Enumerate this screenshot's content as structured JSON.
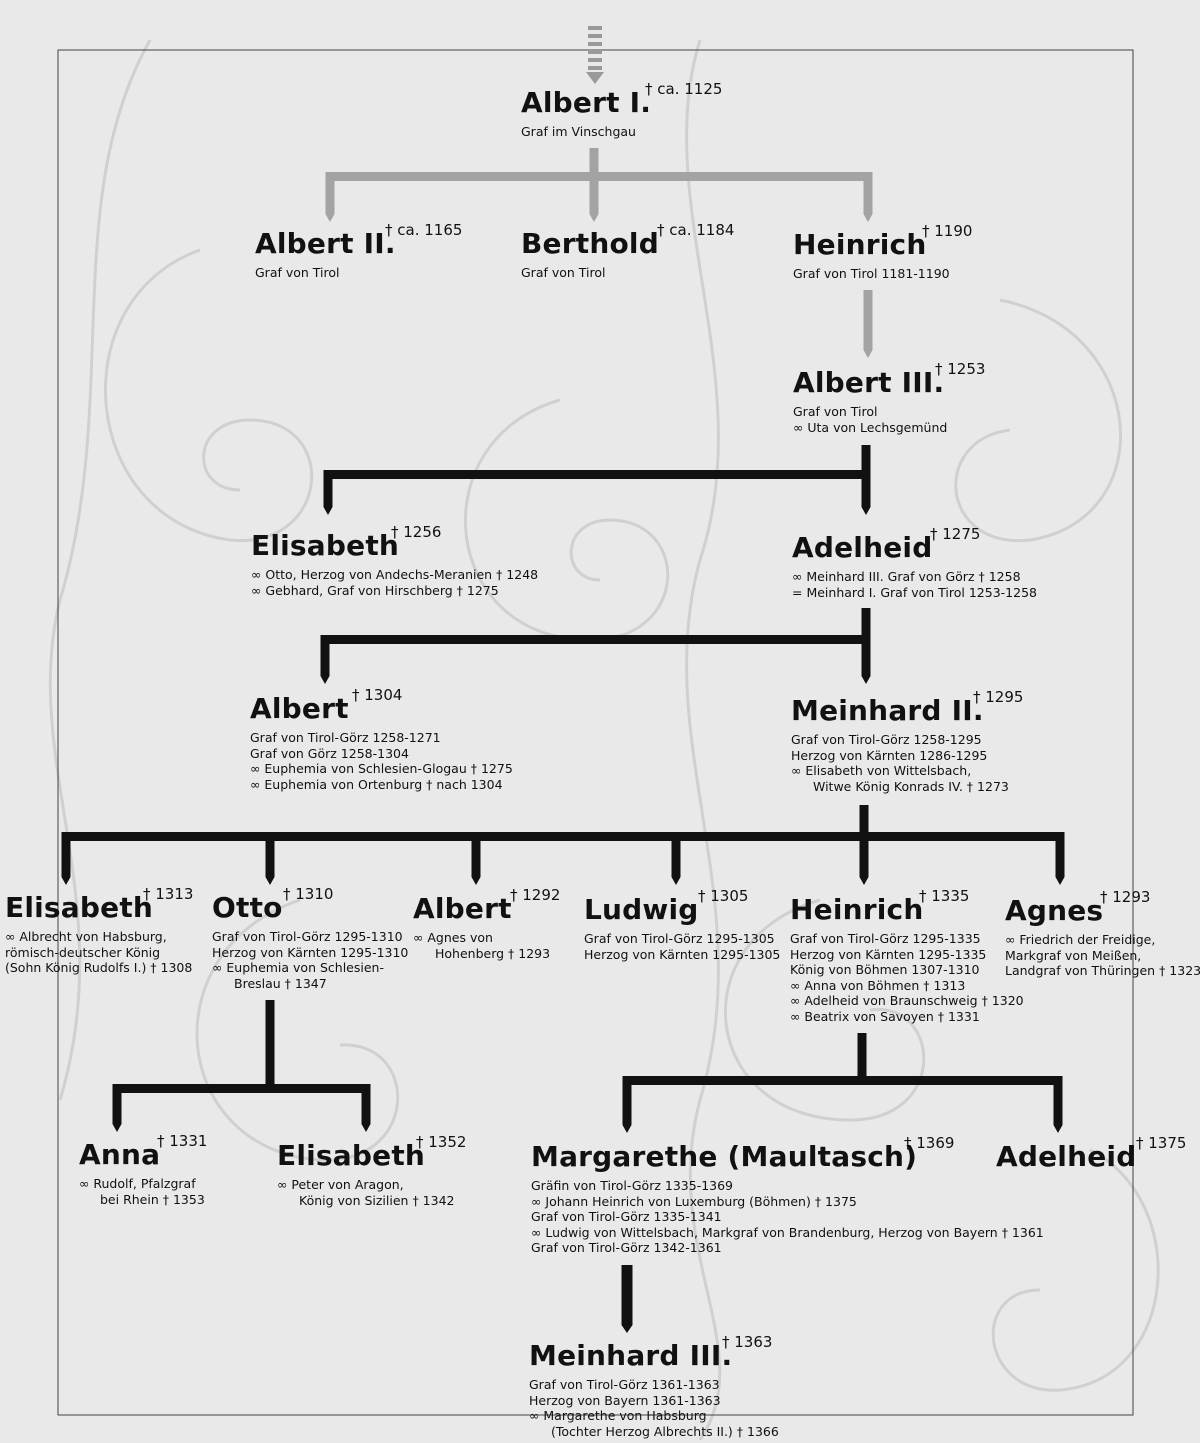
{
  "nodes": [
    {
      "name": "Albert I.",
      "death": "† ca. 1125",
      "lines": [
        "Graf im Vinschgau"
      ]
    },
    {
      "name": "Albert II.",
      "death": "† ca. 1165",
      "lines": [
        "Graf von Tirol"
      ]
    },
    {
      "name": "Berthold",
      "death": "† ca. 1184",
      "lines": [
        "Graf von Tirol"
      ]
    },
    {
      "name": "Heinrich",
      "death": "† 1190",
      "lines": [
        "Graf von Tirol 1181-1190"
      ]
    },
    {
      "name": "Albert III.",
      "death": "† 1253",
      "lines": [
        "Graf von Tirol",
        "∞ Uta von Lechsgemünd"
      ]
    },
    {
      "name": "Elisabeth",
      "death": "† 1256",
      "lines": [
        "∞ Otto, Herzog von Andechs-Meranien † 1248",
        "∞ Gebhard, Graf von Hirschberg † 1275"
      ]
    },
    {
      "name": "Adelheid",
      "death": "† 1275",
      "lines": [
        "∞ Meinhard III. Graf von Görz † 1258",
        "= Meinhard I. Graf von Tirol 1253-1258"
      ]
    },
    {
      "name": "Albert",
      "death": "† 1304",
      "lines": [
        "Graf von Tirol-Görz 1258-1271",
        "Graf von Görz 1258-1304",
        "∞ Euphemia von Schlesien-Glogau † 1275",
        "∞ Euphemia von Ortenburg † nach 1304"
      ]
    },
    {
      "name": "Meinhard II.",
      "death": "† 1295",
      "lines": [
        "Graf von Tirol-Görz 1258-1295",
        "Herzog von Kärnten 1286-1295",
        "∞ Elisabeth von Wittelsbach,",
        "Witwe König Konrads IV. † 1273"
      ]
    },
    {
      "name": "Elisabeth",
      "death": "† 1313",
      "lines": [
        "∞ Albrecht von Habsburg,",
        "römisch-deutscher König",
        "(Sohn König Rudolfs I.) † 1308"
      ]
    },
    {
      "name": "Otto",
      "death": "† 1310",
      "lines": [
        "Graf von Tirol-Görz 1295-1310",
        "Herzog von Kärnten 1295-1310",
        "∞ Euphemia von Schlesien-",
        "Breslau † 1347"
      ]
    },
    {
      "name": "Albert",
      "death": "† 1292",
      "lines": [
        "∞ Agnes von",
        "Hohenberg † 1293"
      ]
    },
    {
      "name": "Ludwig",
      "death": "† 1305",
      "lines": [
        "Graf von Tirol-Görz 1295-1305",
        "Herzog von Kärnten 1295-1305"
      ]
    },
    {
      "name": "Heinrich",
      "death": "† 1335",
      "lines": [
        "Graf von Tirol-Görz 1295-1335",
        "Herzog von Kärnten 1295-1335",
        "König von Böhmen 1307-1310",
        "∞ Anna von Böhmen † 1313",
        "∞ Adelheid von Braunschweig † 1320",
        "∞ Beatrix von Savoyen † 1331"
      ]
    },
    {
      "name": "Agnes",
      "death": "† 1293",
      "lines": [
        "∞ Friedrich der Freidige,",
        "Markgraf von Meißen,",
        "Landgraf von Thüringen † 1323"
      ]
    },
    {
      "name": "Anna",
      "death": "† 1331",
      "lines": [
        "∞ Rudolf, Pfalzgraf",
        "bei Rhein † 1353"
      ]
    },
    {
      "name": "Elisabeth",
      "death": "† 1352",
      "lines": [
        "∞ Peter von Aragon,",
        "König von Sizilien † 1342"
      ]
    },
    {
      "name": "Margarethe (Maultasch)",
      "death": "† 1369",
      "lines": [
        "Gräfin von Tirol-Görz 1335-1369",
        "∞ Johann Heinrich von Luxemburg (Böhmen) † 1375",
        "Graf von Tirol-Görz 1335-1341",
        "∞ Ludwig von Wittelsbach, Markgraf von Brandenburg, Herzog von Bayern † 1361",
        "Graf von Tirol-Görz 1342-1361"
      ]
    },
    {
      "name": "Adelheid",
      "death": "† 1375",
      "lines": []
    },
    {
      "name": "Meinhard III.",
      "death": "† 1363",
      "lines": [
        "Graf von Tirol-Görz 1361-1363",
        "Herzog von Bayern 1361-1363",
        "∞ Margarethe von Habsburg",
        "(Tochter Herzog Albrechts II.) † 1366"
      ]
    }
  ]
}
